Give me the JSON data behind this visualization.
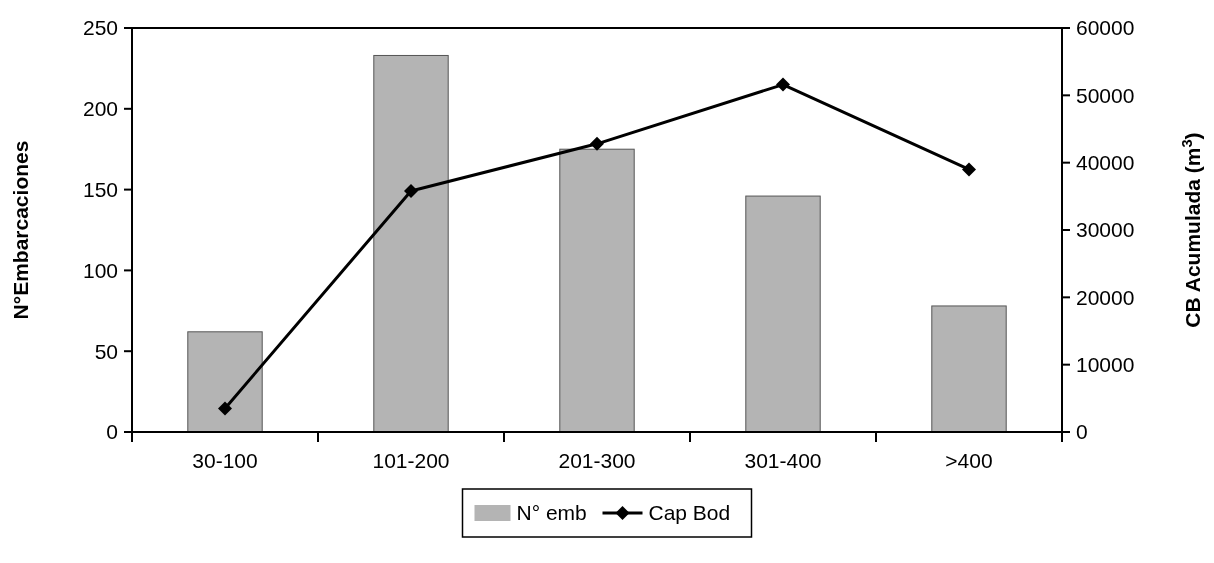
{
  "chart_data": {
    "type": "bar",
    "ylabel": "N°Embarcaciones",
    "y2label": "CB Acumulada (m$^{3}$)",
    "categories": [
      "30-100",
      "101-200",
      "201-300",
      "301-400",
      ">400"
    ],
    "series": [
      {
        "name": "N° emb",
        "color": "#b4b4b4",
        "values": [
          62,
          233,
          175,
          146,
          78
        ]
      },
      {
        "name": "Cap Bod",
        "type": "line",
        "axis": "y2",
        "color": "#000000",
        "marker": "diamond",
        "values": [
          3500,
          35800,
          42800,
          51600,
          39000
        ]
      }
    ],
    "ylim": [
      0,
      250
    ],
    "yticks": [
      0,
      50,
      100,
      150,
      200,
      250
    ],
    "y2lim": [
      0,
      60000
    ],
    "y2ticks": [
      0,
      10000,
      20000,
      30000,
      40000,
      50000,
      60000
    ],
    "legend": "bottom",
    "grid": false
  }
}
